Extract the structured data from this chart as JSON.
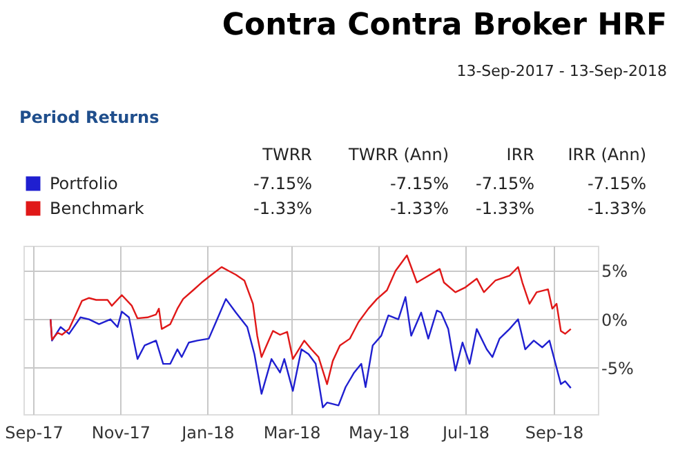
{
  "chart_data": {
    "type": "line",
    "title": "Contra Contra Broker HRF",
    "subtitle": "13-Sep-2017 - 13-Sep-2018",
    "annotations": [
      "Period Returns",
      "TWRR",
      "TWRR (Ann)",
      "IRR",
      "IRR (Ann)",
      "-7.15%",
      "-7.15%",
      "-7.15%",
      "-7.15%",
      "-1.33%",
      "-1.33%",
      "-1.33%",
      "-1.33%"
    ],
    "legend": "top left",
    "grid": true,
    "xlim": [
      "2017-08-25",
      "2018-10-02"
    ],
    "xticks": [
      {
        "value": "2017-09-01",
        "label": "Sep-17"
      },
      {
        "value": "2017-11-01",
        "label": "Nov-17"
      },
      {
        "value": "2018-01-01",
        "label": "Jan-18"
      },
      {
        "value": "2018-03-01",
        "label": "Mar-18"
      },
      {
        "value": "2018-05-01",
        "label": "May-18"
      },
      {
        "value": "2018-07-01",
        "label": "Jul-18"
      },
      {
        "value": "2018-09-01",
        "label": "Sep-18"
      }
    ],
    "ylim": [
      -9.8,
      7.6
    ],
    "yticks": [
      {
        "value": 5,
        "label": "5%"
      },
      {
        "value": 0,
        "label": "0%"
      },
      {
        "value": -5,
        "label": "-5%"
      }
    ],
    "series": [
      {
        "name": "Portfolio",
        "color": "#1f1fd0",
        "x": [
          "2017-09-13",
          "2017-09-14",
          "2017-09-20",
          "2017-09-26",
          "2017-10-04",
          "2017-10-10",
          "2017-10-17",
          "2017-10-25",
          "2017-10-30",
          "2017-11-02",
          "2017-11-07",
          "2017-11-13",
          "2017-11-18",
          "2017-11-26",
          "2017-12-01",
          "2017-12-06",
          "2017-12-11",
          "2017-12-14",
          "2017-12-19",
          "2017-12-25",
          "2018-01-02",
          "2018-01-07",
          "2018-01-14",
          "2018-01-21",
          "2018-01-29",
          "2018-02-03",
          "2018-02-08",
          "2018-02-15",
          "2018-02-21",
          "2018-02-24",
          "2018-03-02",
          "2018-03-08",
          "2018-03-13",
          "2018-03-18",
          "2018-03-23",
          "2018-03-26",
          "2018-04-03",
          "2018-04-08",
          "2018-04-14",
          "2018-04-19",
          "2018-04-22",
          "2018-04-27",
          "2018-05-03",
          "2018-05-08",
          "2018-05-15",
          "2018-05-20",
          "2018-05-24",
          "2018-05-31",
          "2018-06-05",
          "2018-06-11",
          "2018-06-14",
          "2018-06-19",
          "2018-06-24",
          "2018-06-29",
          "2018-07-04",
          "2018-07-09",
          "2018-07-16",
          "2018-07-20",
          "2018-07-25",
          "2018-08-01",
          "2018-08-07",
          "2018-08-12",
          "2018-08-18",
          "2018-08-24",
          "2018-08-29",
          "2018-09-03",
          "2018-09-06",
          "2018-09-09",
          "2018-09-13"
        ],
        "values": [
          0,
          -2.2,
          -0.8,
          -1.5,
          0.2,
          0,
          -0.5,
          0,
          -0.8,
          0.8,
          0.2,
          -4.1,
          -2.7,
          -2.2,
          -4.6,
          -4.6,
          -3.1,
          -3.9,
          -2.4,
          -2.2,
          -2.0,
          -0.3,
          2.1,
          0.7,
          -0.8,
          -3.6,
          -7.7,
          -4.1,
          -5.5,
          -4.1,
          -7.4,
          -3.1,
          -3.6,
          -4.6,
          -9.1,
          -8.6,
          -8.9,
          -7.0,
          -5.5,
          -4.6,
          -7.0,
          -2.7,
          -1.7,
          0.4,
          0,
          2.3,
          -1.7,
          0.7,
          -2.0,
          0.9,
          0.7,
          -1.0,
          -5.3,
          -2.4,
          -4.6,
          -1.0,
          -3.1,
          -3.9,
          -2.0,
          -1.0,
          0,
          -3.1,
          -2.2,
          -2.9,
          -2.2,
          -5.0,
          -6.7,
          -6.4,
          -7.1
        ]
      },
      {
        "name": "Benchmark",
        "color": "#e01818",
        "x": [
          "2017-09-13",
          "2017-09-14",
          "2017-09-18",
          "2017-09-21",
          "2017-09-26",
          "2017-10-01",
          "2017-10-05",
          "2017-10-10",
          "2017-10-15",
          "2017-10-23",
          "2017-10-26",
          "2017-11-02",
          "2017-11-09",
          "2017-11-13",
          "2017-11-20",
          "2017-11-26",
          "2017-11-28",
          "2017-11-30",
          "2017-12-06",
          "2017-12-11",
          "2017-12-15",
          "2017-12-22",
          "2017-12-28",
          "2018-01-03",
          "2018-01-11",
          "2018-01-16",
          "2018-01-21",
          "2018-01-27",
          "2018-02-02",
          "2018-02-05",
          "2018-02-08",
          "2018-02-13",
          "2018-02-16",
          "2018-02-21",
          "2018-02-26",
          "2018-03-02",
          "2018-03-10",
          "2018-03-15",
          "2018-03-20",
          "2018-03-26",
          "2018-03-30",
          "2018-04-04",
          "2018-04-11",
          "2018-04-17",
          "2018-04-24",
          "2018-04-30",
          "2018-05-07",
          "2018-05-13",
          "2018-05-21",
          "2018-05-28",
          "2018-06-05",
          "2018-06-13",
          "2018-06-16",
          "2018-06-24",
          "2018-07-01",
          "2018-07-09",
          "2018-07-14",
          "2018-07-22",
          "2018-08-01",
          "2018-08-07",
          "2018-08-10",
          "2018-08-15",
          "2018-08-20",
          "2018-08-28",
          "2018-08-31",
          "2018-09-03",
          "2018-09-06",
          "2018-09-09",
          "2018-09-13"
        ],
        "values": [
          0,
          -2.1,
          -1.4,
          -1.6,
          -1.0,
          0.6,
          1.9,
          2.2,
          2.0,
          2.0,
          1.4,
          2.5,
          1.4,
          0.1,
          0.2,
          0.5,
          1.1,
          -1.0,
          -0.5,
          1.1,
          2.1,
          3.0,
          3.8,
          4.5,
          5.4,
          5.0,
          4.6,
          4.0,
          1.6,
          -1.7,
          -3.9,
          -2.2,
          -1.2,
          -1.6,
          -1.3,
          -4.1,
          -2.2,
          -3.1,
          -3.9,
          -6.7,
          -4.3,
          -2.7,
          -2.0,
          -0.3,
          1.1,
          2.1,
          3.0,
          5.0,
          6.6,
          3.8,
          4.5,
          5.2,
          3.8,
          2.8,
          3.3,
          4.2,
          2.8,
          4.0,
          4.5,
          5.4,
          3.8,
          1.6,
          2.8,
          3.1,
          1.1,
          1.6,
          -1.2,
          -1.5,
          -1.0
        ]
      }
    ]
  }
}
